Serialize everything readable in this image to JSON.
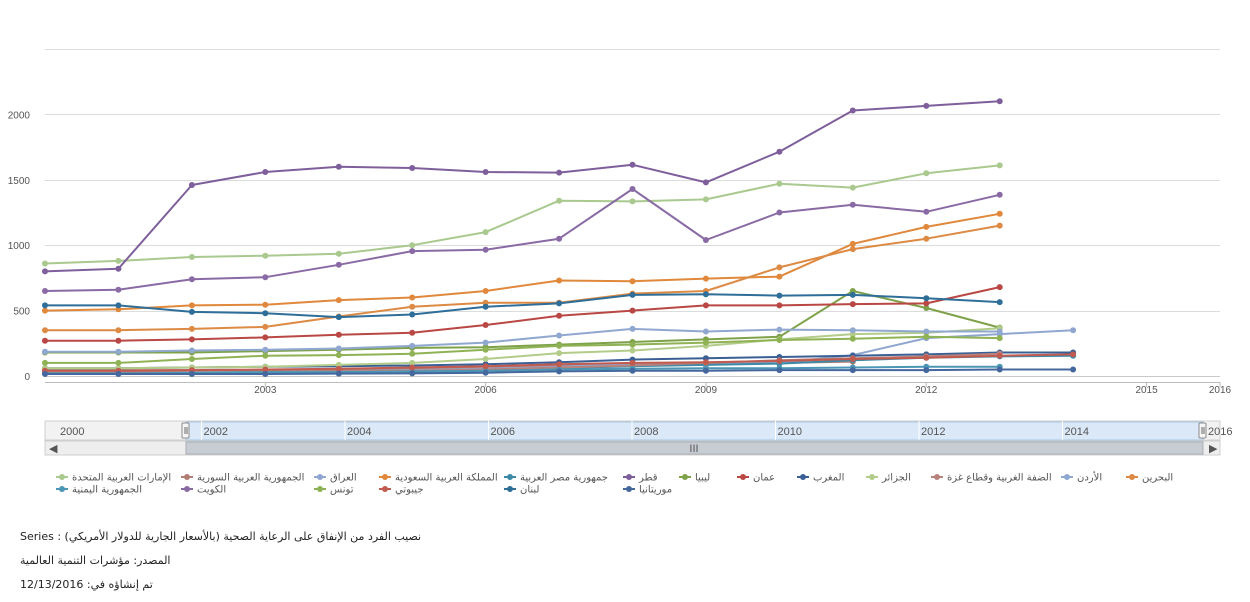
{
  "chart_data": {
    "type": "line",
    "x": [
      2000,
      2001,
      2002,
      2003,
      2004,
      2005,
      2006,
      2007,
      2008,
      2009,
      2010,
      2011,
      2012,
      2013,
      2014
    ],
    "y_ticks": [
      0,
      500,
      1000,
      1500,
      2000
    ],
    "x_ticks": [
      2003,
      2006,
      2009,
      2012,
      2015,
      2016
    ],
    "ylim": [
      0,
      2500
    ],
    "xlim": [
      2000,
      2016
    ],
    "grid": "horizontal",
    "legend_position": "bottom",
    "series": [
      {
        "name": "الإمارات العربية المتحدة",
        "color": "#a9c98f",
        "values": [
          860,
          880,
          910,
          920,
          935,
          1000,
          1100,
          1340,
          1335,
          1350,
          1470,
          1440,
          1550,
          1610,
          null
        ]
      },
      {
        "name": "الجمهورية العربية السورية",
        "color": "#b07c74",
        "values": [
          45,
          45,
          45,
          45,
          45,
          55,
          70,
          80,
          90,
          95,
          100,
          110,
          null,
          null,
          null
        ]
      },
      {
        "name": "العراق",
        "color": "#8fa7cf",
        "values": [
          20,
          20,
          25,
          30,
          35,
          45,
          55,
          70,
          95,
          100,
          100,
          160,
          290,
          320,
          350
        ]
      },
      {
        "name": "المملكة العربية السعودية",
        "color": "#e0883b",
        "values": [
          500,
          510,
          540,
          545,
          580,
          600,
          650,
          730,
          725,
          745,
          760,
          1010,
          1140,
          1240,
          null
        ]
      },
      {
        "name": "جمهورية مصر العربية",
        "color": "#3c8aa8",
        "values": [
          20,
          20,
          20,
          25,
          25,
          30,
          40,
          60,
          75,
          85,
          95,
          120,
          140,
          150,
          155
        ]
      },
      {
        "name": "قطر",
        "color": "#7e5f9c",
        "values": [
          800,
          820,
          1460,
          1560,
          1600,
          1590,
          1560,
          1555,
          1615,
          1480,
          1715,
          2030,
          2065,
          2100,
          null
        ]
      },
      {
        "name": "ليبيا",
        "color": "#7ea24a",
        "values": [
          180,
          180,
          180,
          190,
          200,
          215,
          220,
          240,
          260,
          280,
          300,
          650,
          520,
          370,
          null
        ]
      },
      {
        "name": "عمان",
        "color": "#b94743",
        "values": [
          270,
          270,
          280,
          295,
          315,
          330,
          390,
          460,
          500,
          540,
          540,
          550,
          555,
          680,
          null
        ]
      },
      {
        "name": "المغرب",
        "color": "#3a5f94",
        "values": [
          60,
          60,
          65,
          70,
          75,
          80,
          90,
          105,
          125,
          135,
          145,
          155,
          165,
          180,
          180
        ]
      },
      {
        "name": "الجزائر",
        "color": "#b3cc8a",
        "values": [
          60,
          60,
          65,
          70,
          85,
          100,
          130,
          175,
          195,
          230,
          280,
          320,
          330,
          365,
          null
        ]
      },
      {
        "name": "الضفة الغربية وقطاع غزة",
        "color": "#b8827c",
        "values": [
          30,
          30,
          30,
          30,
          35,
          40,
          50,
          65,
          80,
          100,
          120,
          135,
          150,
          170,
          null
        ]
      },
      {
        "name": "الأردن",
        "color": "#90a8d0",
        "values": [
          185,
          185,
          195,
          200,
          210,
          230,
          255,
          310,
          360,
          340,
          355,
          350,
          340,
          340,
          null
        ]
      },
      {
        "name": "البحرين",
        "color": "#dc8a44",
        "values": [
          350,
          350,
          360,
          375,
          455,
          530,
          560,
          560,
          630,
          650,
          830,
          970,
          1050,
          1150,
          null
        ]
      },
      {
        "name": "الجمهورية اليمنية",
        "color": "#4a96b4",
        "values": [
          20,
          20,
          25,
          30,
          30,
          35,
          40,
          50,
          55,
          60,
          60,
          65,
          70,
          70,
          null
        ]
      },
      {
        "name": "الكويت",
        "color": "#8a6aa5",
        "values": [
          650,
          660,
          740,
          755,
          850,
          955,
          965,
          1050,
          1430,
          1040,
          1250,
          1310,
          1255,
          1385,
          null
        ]
      },
      {
        "name": "تونس",
        "color": "#8fb255",
        "values": [
          100,
          100,
          130,
          155,
          160,
          170,
          200,
          230,
          240,
          255,
          275,
          285,
          300,
          290,
          null
        ]
      },
      {
        "name": "جيبوتي",
        "color": "#c15a4f",
        "values": [
          40,
          40,
          45,
          50,
          55,
          65,
          75,
          90,
          100,
          105,
          115,
          130,
          140,
          155,
          165
        ]
      },
      {
        "name": "لبنان",
        "color": "#2e6e99",
        "values": [
          540,
          540,
          490,
          480,
          450,
          470,
          530,
          555,
          620,
          625,
          615,
          620,
          595,
          565,
          null
        ]
      },
      {
        "name": "موريتانيا",
        "color": "#44679e",
        "values": [
          15,
          15,
          15,
          15,
          18,
          20,
          25,
          35,
          40,
          40,
          45,
          45,
          45,
          50,
          50
        ]
      }
    ]
  },
  "navigator": {
    "labels": [
      "2000",
      "2002",
      "2004",
      "2006",
      "2008",
      "2010",
      "2012",
      "2014",
      "2016"
    ],
    "scroll_glyph": "III",
    "left_arrow": "◀",
    "right_arrow": "▶"
  },
  "footer": {
    "series_line": "Series : نصيب الفرد من الإنفاق على الرعاية الصحية (بالأسعار الجارية للدولار الأمريكي)",
    "source_line": "المصدر: مؤشرات التنمية العالمية",
    "created_line": "تم إنشاؤه في: 12/13/2016"
  }
}
